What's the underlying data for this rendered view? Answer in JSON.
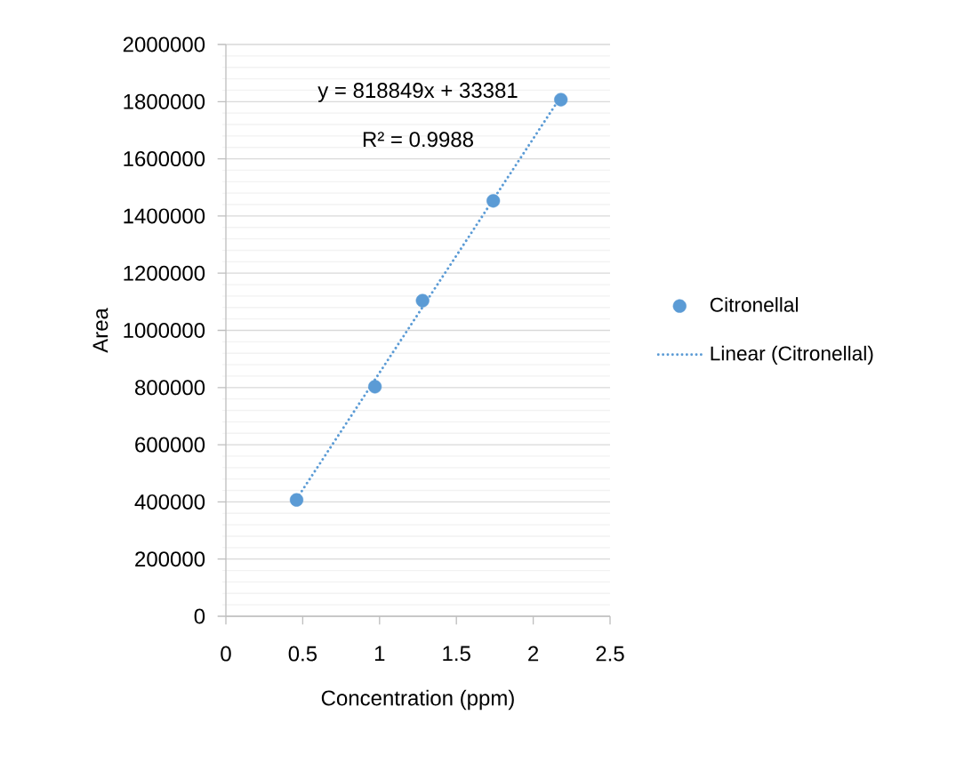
{
  "chart_data": {
    "type": "scatter",
    "xlabel": "Concentration (ppm)",
    "ylabel": "Area",
    "xlim": [
      0,
      2.5
    ],
    "xticks": [
      0,
      0.5,
      1,
      1.5,
      2,
      2.5
    ],
    "ylim": [
      0,
      2000000
    ],
    "yticks": [
      0,
      200000,
      400000,
      600000,
      800000,
      1000000,
      1200000,
      1400000,
      1600000,
      1800000,
      2000000
    ],
    "grid": "y",
    "legend": "right",
    "marker": "circle",
    "annotations": [
      "y = 818849x + 33381",
      "R² = 0.9988"
    ],
    "series": [
      {
        "name": "Citronellal",
        "color": "#5b9bd5",
        "x": [
          0.46,
          0.97,
          1.28,
          1.74,
          2.18
        ],
        "values": [
          407000,
          803000,
          1104000,
          1453000,
          1807000
        ]
      },
      {
        "name": "Linear (Citronellal)",
        "type": "line",
        "line_style": "dotted",
        "marker": "none",
        "color": "#5b9bd5",
        "x": [
          0.46,
          2.18
        ],
        "values": [
          410000,
          1818000
        ]
      }
    ]
  }
}
